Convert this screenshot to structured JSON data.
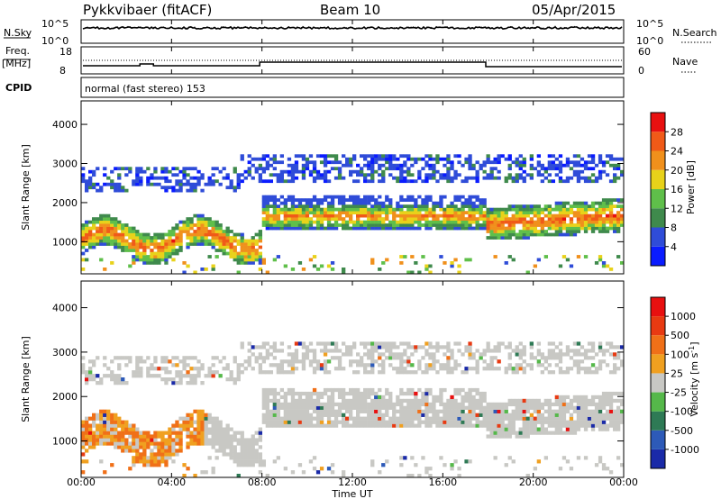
{
  "header": {
    "title": "Pykkvibaer (fitACF)",
    "beam": "Beam 10",
    "date": "05/Apr/2015"
  },
  "nsky_panel": {
    "label": "N.Sky",
    "right_label": "N.Search",
    "ticks_left": [
      "10^5",
      "10^0"
    ],
    "ticks_right": [
      "10^5",
      "10^0"
    ]
  },
  "freq_panel": {
    "label_line1": "Freq.",
    "label_line2": "[MHz]",
    "right_label": "Nave",
    "ticks_left": [
      "18",
      "8"
    ],
    "ticks_right": [
      "60",
      "0"
    ]
  },
  "cpid": {
    "label": "CPID",
    "text": "normal (fast stereo) 153"
  },
  "chart_data": [
    {
      "type": "heatmap",
      "name": "power",
      "xlabel": "Time UT",
      "ylabel": "Slant Range [km]",
      "x_ticks": [
        "00:00",
        "04:00",
        "08:00",
        "12:00",
        "16:00",
        "20:00",
        "00:00"
      ],
      "y_ticks": [
        1000,
        2000,
        3000,
        4000
      ],
      "ylim": [
        180,
        4600
      ],
      "colorbar": {
        "label": "Power [dB]",
        "ticks": [
          "4",
          "8",
          "12",
          "16",
          "20",
          "24",
          "28"
        ],
        "colors": [
          "#0a1cff",
          "#2f4cd8",
          "#3f8a4c",
          "#5fbf4a",
          "#e8d21a",
          "#f0901c",
          "#f05a18",
          "#e81010"
        ]
      }
    },
    {
      "type": "heatmap",
      "name": "velocity",
      "xlabel": "Time UT",
      "ylabel": "Slant Range [km]",
      "x_ticks": [
        "00:00",
        "04:00",
        "08:00",
        "12:00",
        "16:00",
        "20:00",
        "00:00"
      ],
      "y_ticks": [
        1000,
        2000,
        3000,
        4000
      ],
      "ylim": [
        180,
        4600
      ],
      "colorbar": {
        "label": "Velocity [m s-1]",
        "ticks": [
          "1000",
          "500",
          "100",
          "25",
          "-25",
          "-100",
          "-500",
          "-1000"
        ],
        "colors": [
          "#1a2aa8",
          "#2d5ab8",
          "#2e7a55",
          "#55b84a",
          "#c8c8c4",
          "#f0a020",
          "#f07018",
          "#e83a12",
          "#e81010"
        ]
      }
    }
  ]
}
